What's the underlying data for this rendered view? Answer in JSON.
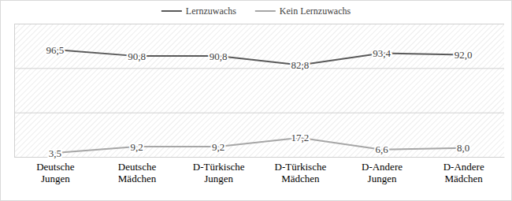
{
  "chart_data": {
    "type": "line",
    "categories": [
      "Deutsche Jungen",
      "Deutsche Mädchen",
      "D-Türkische Jungen",
      "D-Türkische Mädchen",
      "D-Andere Jungen",
      "D-Andere Mädchen"
    ],
    "series": [
      {
        "name": "Lernzuwachs",
        "color": "#595959",
        "values": [
          96.5,
          90.8,
          90.8,
          82.8,
          93.4,
          92.0
        ],
        "value_labels": [
          "96,5",
          "90,8",
          "90,8",
          "82,8",
          "93,4",
          "92,0"
        ]
      },
      {
        "name": "Kein Lernzuwachs",
        "color": "#a6a6a6",
        "values": [
          3.5,
          9.2,
          9.2,
          17.2,
          6.6,
          8.0
        ],
        "value_labels": [
          "3,5",
          "9,2",
          "9,2",
          "17,2",
          "6,6",
          "8,0"
        ]
      }
    ],
    "ylim": [
      0,
      120
    ],
    "yticks": [
      0,
      40,
      80,
      120
    ],
    "grid": true,
    "legend": "top",
    "data_labels": true,
    "tick_labels": "x"
  }
}
